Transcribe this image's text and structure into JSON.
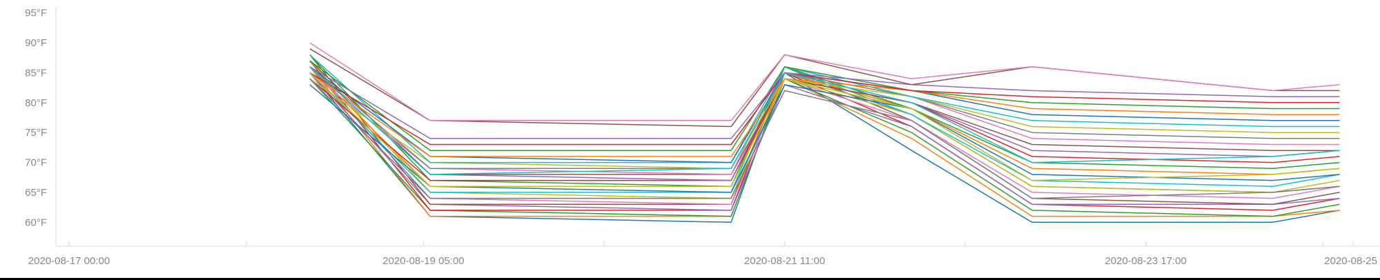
{
  "chart_data": {
    "type": "line",
    "title": "",
    "xlabel": "",
    "ylabel": "",
    "y_unit": "°F",
    "ylim": [
      56,
      96
    ],
    "y_ticks": [
      {
        "value": 60,
        "label": "60°F"
      },
      {
        "value": 65,
        "label": "65°F"
      },
      {
        "value": 70,
        "label": "70°F"
      },
      {
        "value": 75,
        "label": "75°F"
      },
      {
        "value": 80,
        "label": "80°F"
      },
      {
        "value": 85,
        "label": "85°F"
      },
      {
        "value": 90,
        "label": "90°F"
      },
      {
        "value": 95,
        "label": "95°F"
      }
    ],
    "xlim": [
      "2020-08-16 23:00",
      "2020-08-25 02:00"
    ],
    "x_ticks": [
      {
        "value": "2020-08-17 00:00",
        "label": "2020-08-17 00:00"
      },
      {
        "value": "2020-08-18 02:30",
        "label": ""
      },
      {
        "value": "2020-08-19 05:00",
        "label": "2020-08-19 05:00"
      },
      {
        "value": "2020-08-20 08:00",
        "label": ""
      },
      {
        "value": "2020-08-21 11:00",
        "label": "2020-08-21 11:00"
      },
      {
        "value": "2020-08-22 14:00",
        "label": ""
      },
      {
        "value": "2020-08-23 17:00",
        "label": "2020-08-23 17:00"
      },
      {
        "value": "2020-08-24 19:30",
        "label": ""
      },
      {
        "value": "2020-08-25 00:00",
        "label": "2020-08-25"
      }
    ],
    "grid": false,
    "legend": "none",
    "colors": [
      "#1f77b4",
      "#ff7f0e",
      "#2ca02c",
      "#d62728",
      "#9467bd",
      "#8c564b",
      "#e377c2",
      "#7f7f7f",
      "#bcbd22",
      "#17becf"
    ],
    "x": [
      "2020-08-18 12:00",
      "2020-08-19 06:00",
      "2020-08-21 03:00",
      "2020-08-21 11:00",
      "2020-08-22 06:00",
      "2020-08-23 00:00",
      "2020-08-24 12:00",
      "2020-08-24 22:00"
    ],
    "series": [
      {
        "values": [
          85,
          61,
          60,
          85,
          72,
          60,
          60,
          62
        ]
      },
      {
        "values": [
          86,
          61,
          61,
          84,
          74,
          61,
          61,
          62
        ]
      },
      {
        "values": [
          84,
          62,
          61,
          84,
          75,
          62,
          61,
          63
        ]
      },
      {
        "values": [
          87,
          62,
          62,
          85,
          76,
          63,
          62,
          64
        ]
      },
      {
        "values": [
          85,
          63,
          62,
          83,
          76,
          63,
          63,
          64
        ]
      },
      {
        "values": [
          88,
          63,
          63,
          86,
          77,
          64,
          63,
          65
        ]
      },
      {
        "values": [
          84,
          64,
          63,
          84,
          77,
          65,
          64,
          66
        ]
      },
      {
        "values": [
          86,
          64,
          64,
          85,
          78,
          66,
          65,
          66
        ]
      },
      {
        "values": [
          87,
          65,
          64,
          84,
          78,
          66,
          65,
          67
        ]
      },
      {
        "values": [
          85,
          65,
          65,
          86,
          78,
          67,
          66,
          68
        ]
      },
      {
        "values": [
          83,
          66,
          65,
          83,
          79,
          68,
          67,
          68
        ]
      },
      {
        "values": [
          86,
          66,
          66,
          85,
          79,
          69,
          68,
          69
        ]
      },
      {
        "values": [
          88,
          67,
          66,
          86,
          79,
          70,
          69,
          70
        ]
      },
      {
        "values": [
          84,
          67,
          67,
          84,
          80,
          71,
          70,
          71
        ]
      },
      {
        "values": [
          86,
          68,
          67,
          85,
          80,
          72,
          71,
          72
        ]
      },
      {
        "values": [
          87,
          68,
          68,
          84,
          80,
          73,
          72,
          72
        ]
      },
      {
        "values": [
          85,
          69,
          68,
          86,
          81,
          74,
          73,
          73
        ]
      },
      {
        "values": [
          86,
          69,
          69,
          85,
          81,
          75,
          74,
          74
        ]
      },
      {
        "values": [
          84,
          70,
          69,
          84,
          81,
          76,
          75,
          75
        ]
      },
      {
        "values": [
          88,
          70,
          70,
          86,
          81,
          77,
          76,
          76
        ]
      },
      {
        "values": [
          86,
          71,
          70,
          85,
          82,
          78,
          77,
          77
        ]
      },
      {
        "values": [
          85,
          71,
          71,
          84,
          82,
          79,
          78,
          78
        ]
      },
      {
        "values": [
          87,
          72,
          72,
          86,
          82,
          80,
          79,
          79
        ]
      },
      {
        "values": [
          85,
          73,
          73,
          85,
          82,
          81,
          80,
          80
        ]
      },
      {
        "values": [
          86,
          74,
          74,
          85,
          83,
          82,
          81,
          81
        ]
      },
      {
        "values": [
          89,
          77,
          76,
          88,
          83,
          86,
          82,
          82
        ]
      },
      {
        "values": [
          90,
          77,
          77,
          88,
          84,
          86,
          82,
          83
        ]
      },
      {
        "values": [
          84,
          64,
          64,
          82,
          77,
          64,
          65,
          66
        ]
      },
      {
        "values": [
          85,
          66,
          66,
          84,
          79,
          67,
          68,
          69
        ]
      },
      {
        "values": [
          86,
          68,
          69,
          85,
          80,
          70,
          71,
          72
        ]
      }
    ]
  }
}
